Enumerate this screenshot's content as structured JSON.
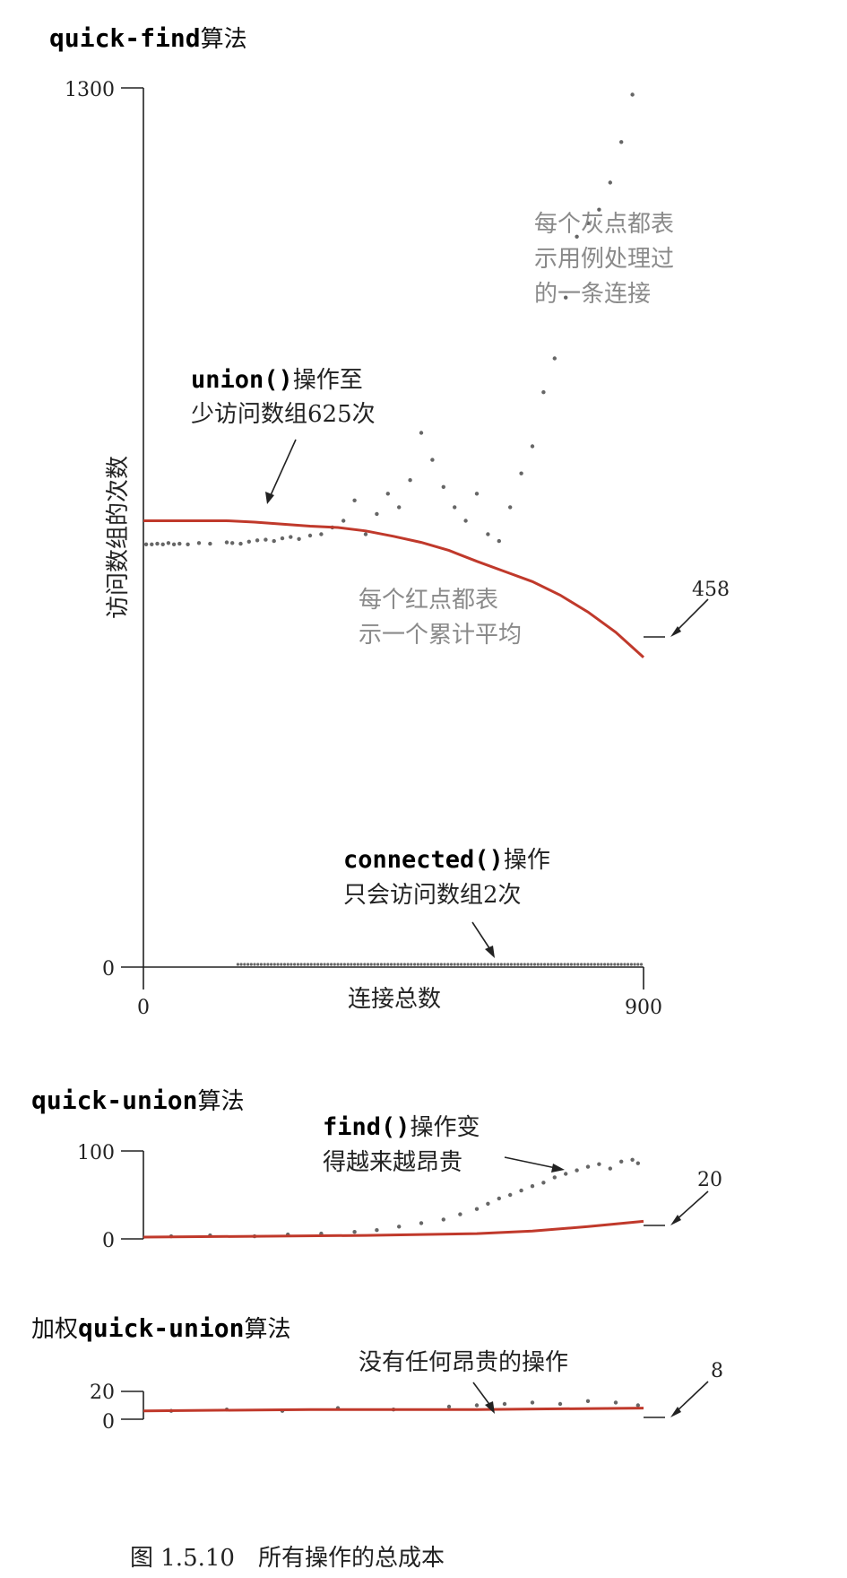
{
  "figure": {
    "caption": "图 1.5.10　所有操作的总成本"
  },
  "chart_data": [
    {
      "type": "scatter",
      "title_code": "quick-find",
      "title_suffix": "算法",
      "ylabel": "访问数组的次数",
      "xlabel": "连接总数",
      "xlim": [
        0,
        900
      ],
      "ylim": [
        0,
        1300
      ],
      "yticks": [
        "1300",
        "0"
      ],
      "xticks": [
        "0",
        "900"
      ],
      "end_value_label": "458",
      "end_value": 458,
      "annotations": [
        {
          "code": "union()",
          "text_1": "操作至",
          "text_2": "少访问数组625次"
        },
        {
          "gray": true,
          "lines": [
            "每个灰点都表",
            "示用例处理过",
            "的一条连接"
          ]
        },
        {
          "gray": true,
          "lines": [
            "每个红点都表",
            "示一个累计平均"
          ]
        },
        {
          "code": "connected()",
          "text_1": "操作",
          "text_2": "只会访问数组2次"
        }
      ],
      "series": [
        {
          "kind": "gray_points",
          "x": [
            5,
            15,
            25,
            35,
            45,
            55,
            65,
            80,
            100,
            120,
            150,
            160,
            175,
            190,
            205,
            220,
            235,
            250,
            265,
            280,
            300,
            320,
            340,
            360,
            380,
            400,
            420,
            440,
            460,
            480,
            500,
            520,
            540,
            560,
            580,
            600,
            620,
            640,
            660,
            680,
            700,
            720,
            740,
            760,
            780,
            800,
            820,
            840,
            860,
            880
          ],
          "y": [
            625,
            625,
            626,
            625,
            627,
            625,
            626,
            625,
            627,
            626,
            628,
            627,
            626,
            629,
            631,
            632,
            630,
            634,
            636,
            633,
            638,
            640,
            650,
            660,
            690,
            640,
            670,
            700,
            680,
            720,
            790,
            750,
            710,
            680,
            660,
            700,
            640,
            630,
            680,
            730,
            770,
            850,
            900,
            990,
            1080,
            1100,
            1120,
            1160,
            1220,
            1290
          ]
        },
        {
          "kind": "red_average",
          "x": [
            0,
            100,
            150,
            200,
            250,
            300,
            350,
            400,
            450,
            500,
            550,
            600,
            650,
            700,
            750,
            800,
            850,
            900
          ],
          "y": [
            660,
            660,
            660,
            658,
            655,
            652,
            650,
            645,
            637,
            628,
            616,
            600,
            585,
            570,
            550,
            525,
            495,
            458
          ]
        }
      ]
    },
    {
      "type": "scatter",
      "title_code": "quick-union",
      "title_suffix": "算法",
      "xlim": [
        0,
        900
      ],
      "ylim": [
        0,
        100
      ],
      "yticks": [
        "100",
        "0"
      ],
      "end_value_label": "20",
      "end_value": 20,
      "annotations": [
        {
          "code": "find()",
          "text_1": "操作变",
          "text_2": "得越来越昂贵"
        }
      ],
      "series": [
        {
          "kind": "gray_points",
          "x": [
            50,
            120,
            200,
            260,
            320,
            380,
            420,
            460,
            500,
            540,
            570,
            600,
            620,
            640,
            660,
            680,
            700,
            720,
            740,
            760,
            780,
            800,
            820,
            840,
            860,
            880,
            890
          ],
          "y": [
            3,
            4,
            3,
            5,
            6,
            8,
            10,
            14,
            18,
            22,
            28,
            34,
            40,
            46,
            50,
            55,
            60,
            64,
            70,
            74,
            78,
            82,
            85,
            80,
            88,
            90,
            86
          ]
        },
        {
          "kind": "red_average",
          "x": [
            0,
            200,
            400,
            600,
            700,
            800,
            900
          ],
          "y": [
            2,
            3,
            4,
            6,
            9,
            14,
            20
          ]
        }
      ]
    },
    {
      "type": "scatter",
      "title_prefix": "加权",
      "title_code": "quick-union",
      "title_suffix": "算法",
      "xlim": [
        0,
        900
      ],
      "ylim": [
        0,
        20
      ],
      "yticks": [
        "20",
        "0"
      ],
      "end_value_label": "8",
      "end_value": 8,
      "annotations": [
        {
          "text_1": "没有任何昂贵的操作"
        }
      ],
      "series": [
        {
          "kind": "gray_points",
          "x": [
            50,
            150,
            250,
            350,
            450,
            550,
            600,
            650,
            700,
            750,
            800,
            850,
            890
          ],
          "y": [
            6,
            7,
            6,
            8,
            7,
            9,
            10,
            11,
            12,
            11,
            13,
            12,
            10
          ]
        },
        {
          "kind": "red_average",
          "x": [
            0,
            300,
            600,
            900
          ],
          "y": [
            6,
            7,
            7,
            8
          ]
        }
      ]
    }
  ]
}
